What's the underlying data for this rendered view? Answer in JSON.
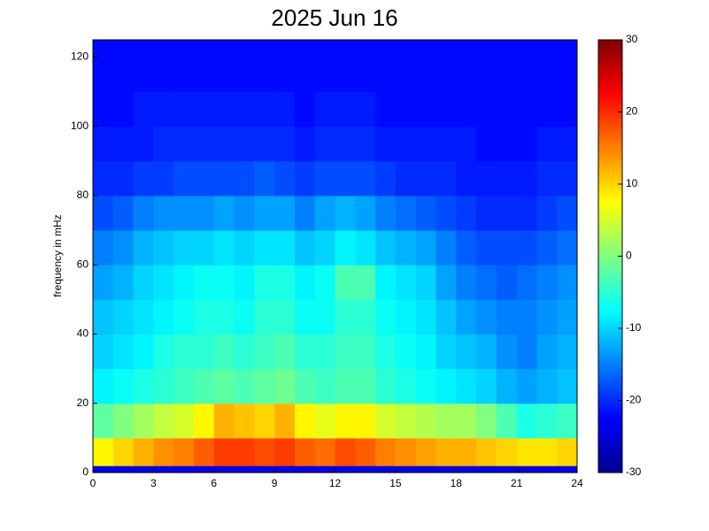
{
  "chart_data": {
    "type": "heatmap",
    "title": "2025 Jun 16",
    "y_label": "frequency in mHz",
    "x_bins": [
      0,
      1,
      2,
      3,
      4,
      5,
      6,
      7,
      8,
      9,
      10,
      11,
      12,
      13,
      14,
      15,
      16,
      17,
      18,
      19,
      20,
      21,
      22,
      23,
      24
    ],
    "y_bins": [
      0,
      2,
      10,
      20,
      30,
      40,
      50,
      60,
      70,
      80,
      90,
      100,
      110,
      125
    ],
    "z": [
      [
        -24,
        -24,
        -24,
        -24,
        -24,
        -24,
        -24,
        -24,
        -24,
        -24,
        -24,
        -24,
        -24,
        -24,
        -24,
        -24,
        -24,
        -24,
        -24,
        -24,
        -24,
        -24,
        -24,
        -24
      ],
      [
        8,
        10,
        12,
        14,
        15,
        17,
        19,
        19,
        18,
        19,
        17,
        16,
        18,
        17,
        15,
        14,
        13,
        12,
        12,
        11,
        10,
        9,
        9,
        10
      ],
      [
        -2,
        0,
        2,
        4,
        5,
        8,
        12,
        11,
        10,
        12,
        8,
        6,
        8,
        8,
        5,
        4,
        3,
        2,
        2,
        0,
        -3,
        -6,
        -5,
        -4
      ],
      [
        -8,
        -7,
        -6,
        -5,
        -4,
        -3,
        -2,
        -3,
        -2,
        -1,
        -3,
        -4,
        -3,
        -3,
        -5,
        -6,
        -7,
        -8,
        -9,
        -10,
        -12,
        -13,
        -12,
        -11
      ],
      [
        -10,
        -9,
        -8,
        -6,
        -5,
        -5,
        -4,
        -5,
        -4,
        -3,
        -5,
        -5,
        -4,
        -4,
        -6,
        -7,
        -8,
        -10,
        -11,
        -12,
        -14,
        -15,
        -13,
        -12
      ],
      [
        -11,
        -10,
        -9,
        -8,
        -7,
        -6,
        -6,
        -7,
        -5,
        -5,
        -7,
        -7,
        -5,
        -5,
        -7,
        -8,
        -9,
        -11,
        -13,
        -14,
        -15,
        -15,
        -14,
        -13
      ],
      [
        -13,
        -12,
        -10,
        -9,
        -8,
        -7,
        -7,
        -8,
        -6,
        -6,
        -8,
        -7,
        -3,
        -3,
        -8,
        -9,
        -10,
        -13,
        -15,
        -16,
        -17,
        -16,
        -15,
        -14
      ],
      [
        -15,
        -14,
        -12,
        -11,
        -10,
        -10,
        -9,
        -10,
        -9,
        -9,
        -11,
        -10,
        -8,
        -9,
        -11,
        -12,
        -13,
        -15,
        -17,
        -18,
        -18,
        -18,
        -17,
        -16
      ],
      [
        -18,
        -17,
        -15,
        -14,
        -14,
        -14,
        -13,
        -14,
        -13,
        -13,
        -15,
        -13,
        -12,
        -13,
        -15,
        -16,
        -17,
        -18,
        -19,
        -20,
        -20,
        -20,
        -19,
        -18
      ],
      [
        -20,
        -20,
        -19,
        -19,
        -18,
        -18,
        -18,
        -18,
        -17,
        -18,
        -19,
        -18,
        -18,
        -18,
        -19,
        -20,
        -20,
        -20,
        -21,
        -21,
        -21,
        -21,
        -20,
        -20
      ],
      [
        -21,
        -21,
        -21,
        -20,
        -20,
        -20,
        -20,
        -20,
        -20,
        -20,
        -21,
        -20,
        -20,
        -20,
        -21,
        -21,
        -21,
        -21,
        -21,
        -22,
        -22,
        -22,
        -21,
        -21
      ],
      [
        -22,
        -22,
        -21,
        -21,
        -21,
        -21,
        -21,
        -21,
        -21,
        -21,
        -22,
        -21,
        -21,
        -21,
        -22,
        -22,
        -22,
        -22,
        -22,
        -22,
        -22,
        -22,
        -22,
        -22
      ],
      [
        -22,
        -22,
        -22,
        -22,
        -22,
        -22,
        -22,
        -22,
        -22,
        -22,
        -22,
        -22,
        -22,
        -22,
        -22,
        -22,
        -22,
        -22,
        -22,
        -22,
        -22,
        -22,
        -22,
        -22
      ]
    ],
    "xlim": [
      0,
      24
    ],
    "xticks": [
      0,
      3,
      6,
      9,
      12,
      15,
      18,
      21,
      24
    ],
    "ylim": [
      0,
      125
    ],
    "yticks": [
      0,
      20,
      40,
      60,
      80,
      100,
      120
    ],
    "clim": [
      -30,
      30
    ],
    "cticks": [
      -30,
      -20,
      -10,
      0,
      10,
      20,
      30
    ],
    "colormap": "jet"
  }
}
